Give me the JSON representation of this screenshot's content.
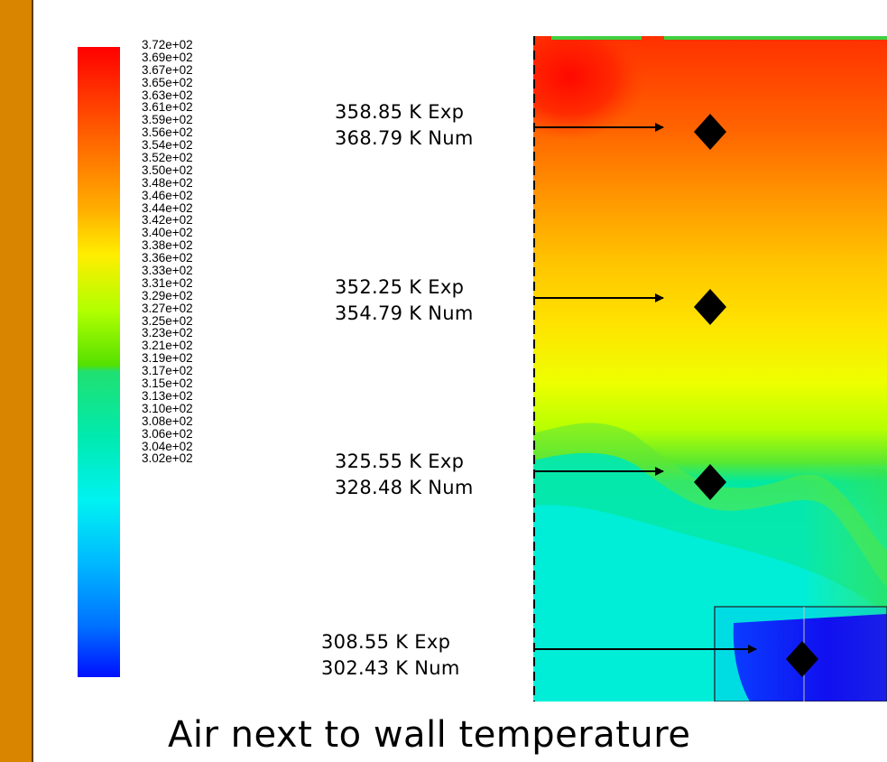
{
  "legend": {
    "labels": [
      "3.72e+02",
      "3.69e+02",
      "3.67e+02",
      "3.65e+02",
      "3.63e+02",
      "3.61e+02",
      "3.59e+02",
      "3.56e+02",
      "3.54e+02",
      "3.52e+02",
      "3.50e+02",
      "3.48e+02",
      "3.46e+02",
      "3.44e+02",
      "3.42e+02",
      "3.40e+02",
      "3.38e+02",
      "3.36e+02",
      "3.33e+02",
      "3.31e+02",
      "3.29e+02",
      "3.27e+02",
      "3.25e+02",
      "3.23e+02",
      "3.21e+02",
      "3.19e+02",
      "3.17e+02",
      "3.15e+02",
      "3.13e+02",
      "3.10e+02",
      "3.08e+02",
      "3.06e+02",
      "3.04e+02",
      "3.02e+02"
    ],
    "colors": [
      "#ff0000",
      "#ff1e00",
      "#ff3c00",
      "#ff5200",
      "#ff6a00",
      "#ff8000",
      "#ff9600",
      "#ffae00",
      "#ffc400",
      "#ffdc00",
      "#fff000",
      "#f0ff00",
      "#d8ff00",
      "#c0ff00",
      "#a6ff00",
      "#8cff00",
      "#70f000",
      "#40e060",
      "#00e678",
      "#00e890",
      "#00eaa6",
      "#00ecbc",
      "#00eed2",
      "#00f0e6",
      "#00f4f4",
      "#00e4ff",
      "#00ccff",
      "#00b4ff",
      "#009cff",
      "#0084ff",
      "#006cff",
      "#0050ff",
      "#0036ff",
      "#0014ff"
    ]
  },
  "annotations": [
    {
      "exp": "358.85 K  Exp",
      "num": "368.79 K  Num"
    },
    {
      "exp": "352.25 K  Exp",
      "num": "354.79 K  Num"
    },
    {
      "exp": "325.55 K  Exp",
      "num": "328.48 K  Num"
    },
    {
      "exp": "308.55 K  Exp",
      "num": "302.43 K  Num"
    }
  ],
  "caption": "Air next to wall temperature",
  "colors": {
    "sidebar": "#d98500",
    "marker": "#000000",
    "hot": "#ff1a00",
    "warm": "#ffc800",
    "mid": "#b4ff00",
    "cool": "#00eee8",
    "cold": "#1020f0"
  }
}
